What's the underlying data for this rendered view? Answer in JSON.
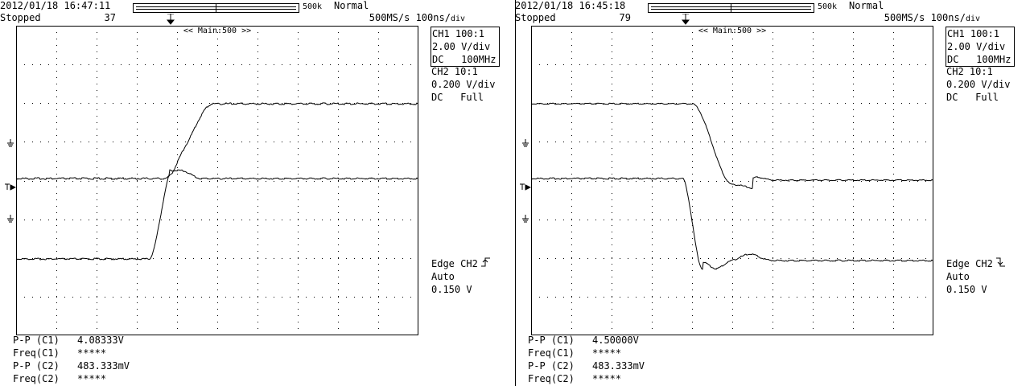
{
  "panels": [
    {
      "datetime": "2012/01/18 16:47:11",
      "run_state": "Stopped",
      "acq_count": "37",
      "trigger_mode": "Normal",
      "record_length": "500k",
      "sample_rate": "500MS/s 100ns/",
      "time_div_unit": "div",
      "zoom_label": "<< Main:500 >>",
      "trigger_marker": "T",
      "ch1": {
        "line1": "CH1 100:1",
        "line2": "2.00 V/div",
        "line3": "DC   100MHz"
      },
      "ch2": {
        "line1": "CH2 10:1",
        "line2": "0.200 V/div",
        "line3": "DC   Full"
      },
      "trigger": {
        "line1": "Edge CH2",
        "edge": "rising",
        "line2": "Auto",
        "line3": "0.150 V"
      },
      "measurements": [
        {
          "label": "P-P (C1)",
          "value": "4.08333V"
        },
        {
          "label": "Freq(C1)",
          "value": "*****"
        },
        {
          "label": "P-P (C2)",
          "value": "483.333mV"
        },
        {
          "label": "Freq(C2)",
          "value": "*****"
        }
      ]
    },
    {
      "datetime": "2012/01/18 16:45:18",
      "run_state": "Stopped",
      "acq_count": "79",
      "trigger_mode": "Normal",
      "record_length": "500k",
      "sample_rate": "500MS/s 100ns/",
      "time_div_unit": "div",
      "zoom_label": "<< Main:500 >>",
      "trigger_marker": "T",
      "ch1": {
        "line1": "CH1 100:1",
        "line2": "2.00 V/div",
        "line3": "DC   100MHz"
      },
      "ch2": {
        "line1": "CH2 10:1",
        "line2": "0.200 V/div",
        "line3": "DC   Full"
      },
      "trigger": {
        "line1": "Edge CH2",
        "edge": "falling",
        "line2": "Auto",
        "line3": "0.150 V"
      },
      "measurements": [
        {
          "label": "P-P (C1)",
          "value": "4.50000V"
        },
        {
          "label": "Freq(C1)",
          "value": "*****"
        },
        {
          "label": "P-P (C2)",
          "value": "483.333mV"
        },
        {
          "label": "Freq(C2)",
          "value": "*****"
        }
      ]
    }
  ],
  "colors": {
    "trace": "#000000",
    "grid": "#000000",
    "background": "#ffffff"
  },
  "icons": {
    "ground": "ground-icon",
    "trigger_level": "trigger-level-icon",
    "rising_edge": "rising-edge-icon",
    "falling_edge": "falling-edge-icon"
  }
}
